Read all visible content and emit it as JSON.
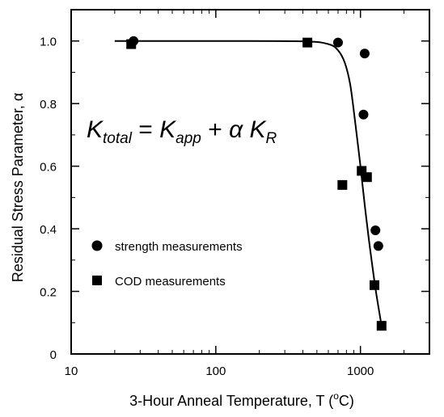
{
  "chart_data": {
    "type": "scatter",
    "xlabel": "3-Hour Anneal Temperature, T (",
    "xlabel_super": "o",
    "xlabel_end": "C)",
    "ylabel": "Residual Stress Parameter, α",
    "xscale": "log",
    "xlim": [
      10,
      3000
    ],
    "ylim": [
      0,
      1.1
    ],
    "x_ticks": [
      {
        "value": 10,
        "label": "10"
      },
      {
        "value": 100,
        "label": "100"
      },
      {
        "value": 1000,
        "label": "1000"
      }
    ],
    "y_ticks": [
      {
        "value": 0,
        "label": "0"
      },
      {
        "value": 0.2,
        "label": "0.2"
      },
      {
        "value": 0.4,
        "label": "0.4"
      },
      {
        "value": 0.6,
        "label": "0.6"
      },
      {
        "value": 0.8,
        "label": "0.8"
      },
      {
        "value": 1.0,
        "label": "1.0"
      }
    ],
    "grid": false,
    "legend_position": "lower-left",
    "series": [
      {
        "name": "strength measurements",
        "marker": "circle",
        "points": [
          {
            "x": 27,
            "y": 1.0
          },
          {
            "x": 700,
            "y": 0.995
          },
          {
            "x": 1070,
            "y": 0.96
          },
          {
            "x": 1050,
            "y": 0.765
          },
          {
            "x": 1270,
            "y": 0.395
          },
          {
            "x": 1330,
            "y": 0.345
          }
        ]
      },
      {
        "name": "COD measurements",
        "marker": "square",
        "points": [
          {
            "x": 26,
            "y": 0.99
          },
          {
            "x": 430,
            "y": 0.995
          },
          {
            "x": 750,
            "y": 0.54
          },
          {
            "x": 1020,
            "y": 0.585
          },
          {
            "x": 1110,
            "y": 0.565
          },
          {
            "x": 1250,
            "y": 0.22
          },
          {
            "x": 1400,
            "y": 0.09
          }
        ]
      }
    ],
    "fit_curve": [
      {
        "x": 20,
        "y": 1.0
      },
      {
        "x": 100,
        "y": 1.0
      },
      {
        "x": 400,
        "y": 0.999
      },
      {
        "x": 600,
        "y": 0.99
      },
      {
        "x": 700,
        "y": 0.97
      },
      {
        "x": 780,
        "y": 0.93
      },
      {
        "x": 850,
        "y": 0.86
      },
      {
        "x": 920,
        "y": 0.74
      },
      {
        "x": 1000,
        "y": 0.6
      },
      {
        "x": 1080,
        "y": 0.46
      },
      {
        "x": 1170,
        "y": 0.33
      },
      {
        "x": 1280,
        "y": 0.2
      },
      {
        "x": 1400,
        "y": 0.09
      }
    ],
    "annotation": {
      "K1": "K",
      "K1_sub": "total",
      "eq": " = ",
      "K2": "K",
      "K2_sub": "app",
      "plus": " + ",
      "alpha": "α",
      "K3": " K",
      "K3_sub": "R"
    }
  }
}
